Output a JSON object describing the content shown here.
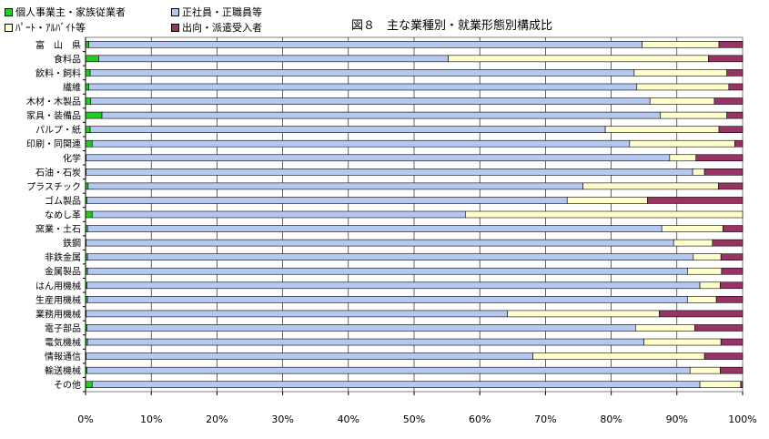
{
  "chart_data": {
    "type": "bar",
    "orientation": "horizontal",
    "stacked": "percent",
    "title": "図８　主な業種別・就業形態別構成比",
    "xlim": [
      0,
      100
    ],
    "x_ticks": [
      "0%",
      "10%",
      "20%",
      "30%",
      "40%",
      "50%",
      "60%",
      "70%",
      "80%",
      "90%",
      "100%"
    ],
    "grid": true,
    "legend_position": "top-left",
    "categories": [
      "富　山　県",
      "食料品",
      "飲料・飼料",
      "繊維",
      "木材・木製品",
      "家具・装備品",
      "パルプ・紙",
      "印刷・同関連",
      "化学",
      "石油・石炭",
      "プラスチック",
      "ゴム製品",
      "なめし革",
      "窯業・土石",
      "鉄鋼",
      "非鉄金属",
      "金属製品",
      "はん用機械",
      "生産用機械",
      "業務用機械",
      "電子部品",
      "電気機械",
      "情報通信",
      "輸送機械",
      "その他"
    ],
    "series": [
      {
        "name": "個人事業主・家族従業者",
        "color": "#22cc22",
        "values": [
          0.5,
          2.0,
          0.7,
          0.5,
          0.8,
          2.5,
          0.7,
          1.0,
          0.1,
          0.1,
          0.4,
          0.2,
          1.0,
          0.3,
          0.1,
          0.3,
          0.3,
          0.2,
          0.3,
          0.1,
          0.2,
          0.3,
          0.1,
          0.2,
          1.0
        ]
      },
      {
        "name": "正社員・正職員等",
        "color": "#b4c8f0",
        "values": [
          84.2,
          53.2,
          82.8,
          83.4,
          85.1,
          85.0,
          78.4,
          81.8,
          88.8,
          92.3,
          75.3,
          73.1,
          56.8,
          87.4,
          89.4,
          92.2,
          91.3,
          93.3,
          91.3,
          64.1,
          83.5,
          84.7,
          68.0,
          91.8,
          92.5
        ]
      },
      {
        "name": "ﾊﾟｰﾄ・ｱﾙﾊﾞｲﾄ等",
        "color": "#ffffcc",
        "values": [
          11.7,
          39.6,
          14.1,
          14.0,
          9.8,
          10.1,
          17.3,
          16.0,
          4.0,
          1.8,
          20.6,
          12.2,
          42.2,
          9.3,
          5.9,
          4.2,
          5.2,
          3.1,
          4.4,
          23.1,
          9.0,
          11.7,
          26.1,
          4.6,
          6.2
        ]
      },
      {
        "name": "出向・派遣受入者",
        "color": "#993366",
        "values": [
          3.6,
          5.2,
          2.4,
          2.1,
          4.3,
          2.4,
          3.6,
          1.2,
          7.1,
          5.8,
          3.7,
          14.5,
          0.0,
          3.0,
          4.6,
          3.3,
          3.2,
          3.4,
          4.0,
          12.7,
          7.3,
          3.3,
          5.8,
          3.4,
          0.3
        ]
      }
    ]
  }
}
